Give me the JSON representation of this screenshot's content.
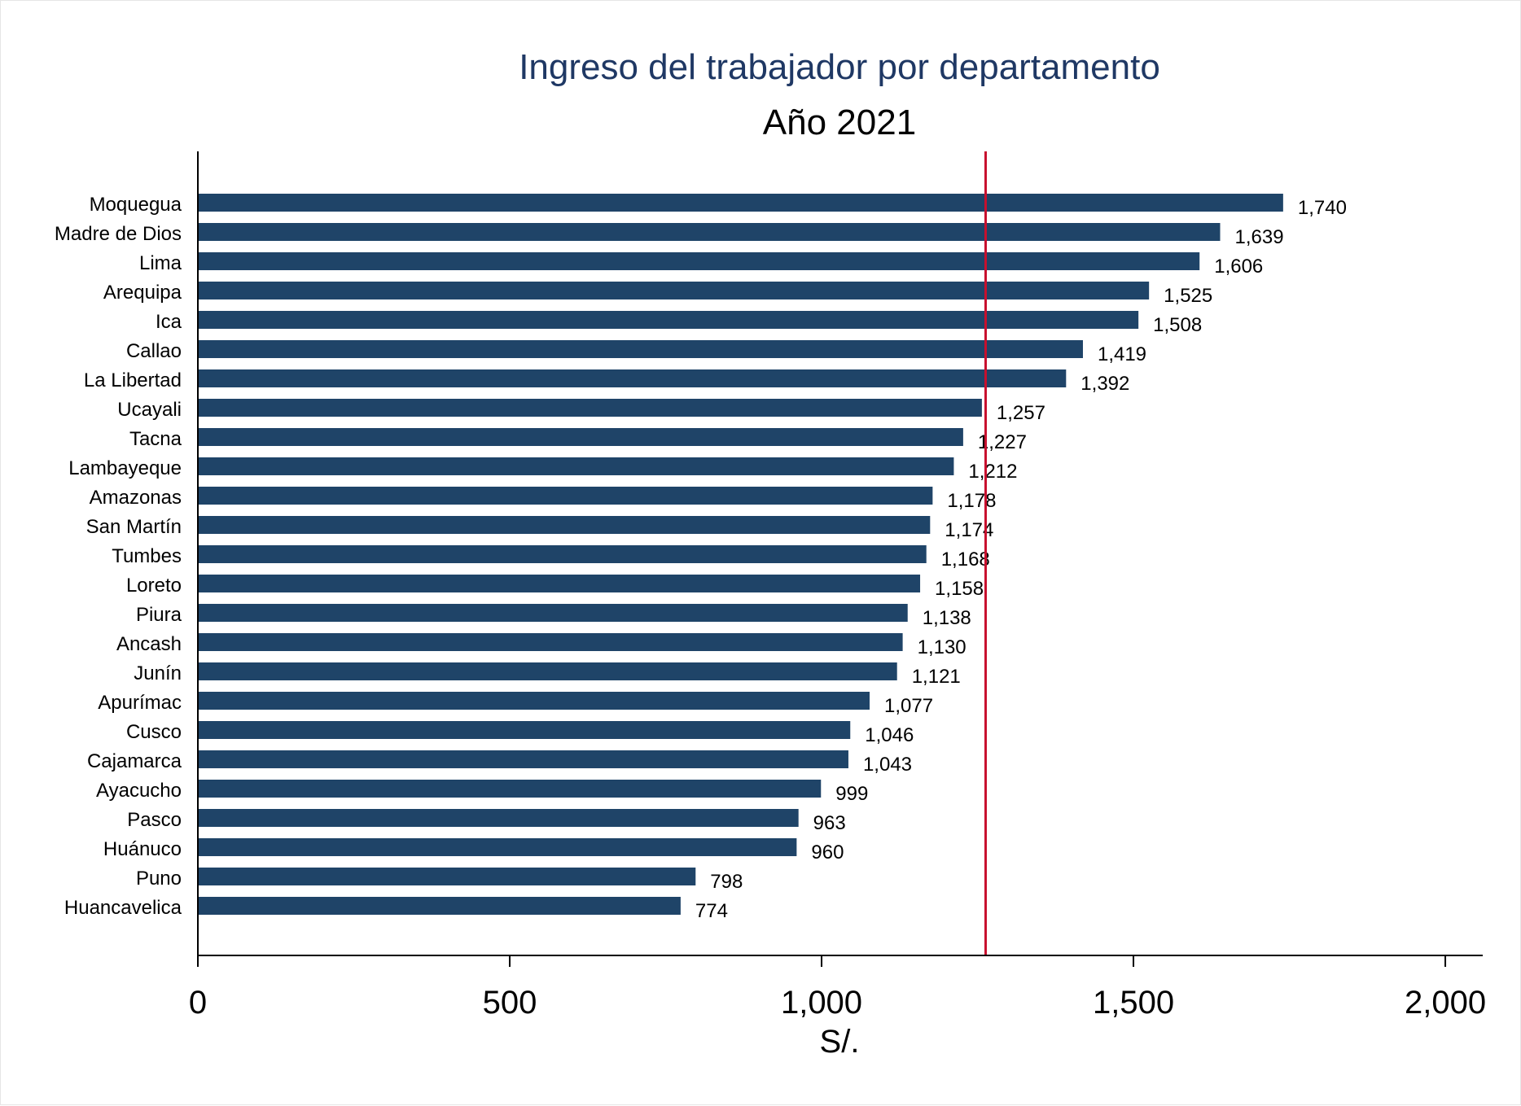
{
  "chart_data": {
    "type": "bar",
    "orientation": "horizontal",
    "title": "Ingreso del trabajador por departamento",
    "subtitle": "Año 2021",
    "xlabel": "S/.",
    "ylabel": "",
    "xlim": [
      0,
      2060
    ],
    "xticks": [
      0,
      500,
      1000,
      1500,
      2000
    ],
    "xtick_labels": [
      "0",
      "500",
      "1,000",
      "1,500",
      "2,000"
    ],
    "grid": false,
    "legend": "none",
    "reference_line": 1263,
    "categories": [
      "Moquegua",
      "Madre de Dios",
      "Lima",
      "Arequipa",
      "Ica",
      "Callao",
      "La Libertad",
      "Ucayali",
      "Tacna",
      "Lambayeque",
      "Amazonas",
      "San Martín",
      "Tumbes",
      "Loreto",
      "Piura",
      "Ancash",
      "Junín",
      "Apurímac",
      "Cusco",
      "Cajamarca",
      "Ayacucho",
      "Pasco",
      "Huánuco",
      "Puno",
      "Huancavelica"
    ],
    "values": [
      1740,
      1639,
      1606,
      1525,
      1508,
      1419,
      1392,
      1257,
      1227,
      1212,
      1178,
      1174,
      1168,
      1158,
      1138,
      1130,
      1121,
      1077,
      1046,
      1043,
      999,
      963,
      960,
      798,
      774
    ],
    "value_labels": [
      "1,740",
      "1,639",
      "1,606",
      "1,525",
      "1,508",
      "1,419",
      "1,392",
      "1,257",
      "1,227",
      "1,212",
      "1,178",
      "1,174",
      "1,168",
      "1,158",
      "1,138",
      "1,130",
      "1,121",
      "1,077",
      "1,046",
      "1,043",
      "999",
      "963",
      "960",
      "798",
      "774"
    ],
    "colors": {
      "bar": "#1f4468",
      "reference_line": "#c8102e",
      "title": "#1f3864",
      "text": "#000000"
    }
  }
}
